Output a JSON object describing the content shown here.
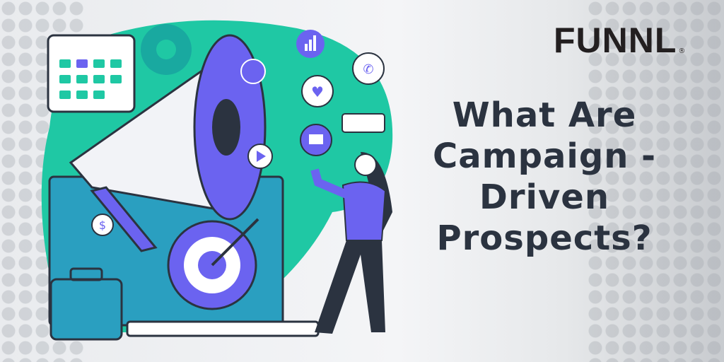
{
  "brand": {
    "name": "FUNNL",
    "registered": "®",
    "accent": "#6a5cff",
    "accent_gradient": [
      "#6a5cff",
      "#1ee3a0"
    ]
  },
  "headline": {
    "lines": [
      "What Are",
      "Campaign -",
      "Driven",
      "Prospects?"
    ]
  },
  "colors": {
    "teal_blob": "#1fc8a4",
    "purple": "#6b63f0",
    "dark": "#2b3340",
    "text": "#2b3340"
  },
  "illustration": {
    "icons": [
      "calendar-icon",
      "gear-icon",
      "megaphone-icon",
      "share-icon",
      "bar-chart-icon",
      "phone-icon",
      "heart-icon",
      "mail-icon",
      "play-icon",
      "dollar-icon",
      "target-icon",
      "briefcase-icon",
      "laptop-icon",
      "woman-figure"
    ]
  }
}
